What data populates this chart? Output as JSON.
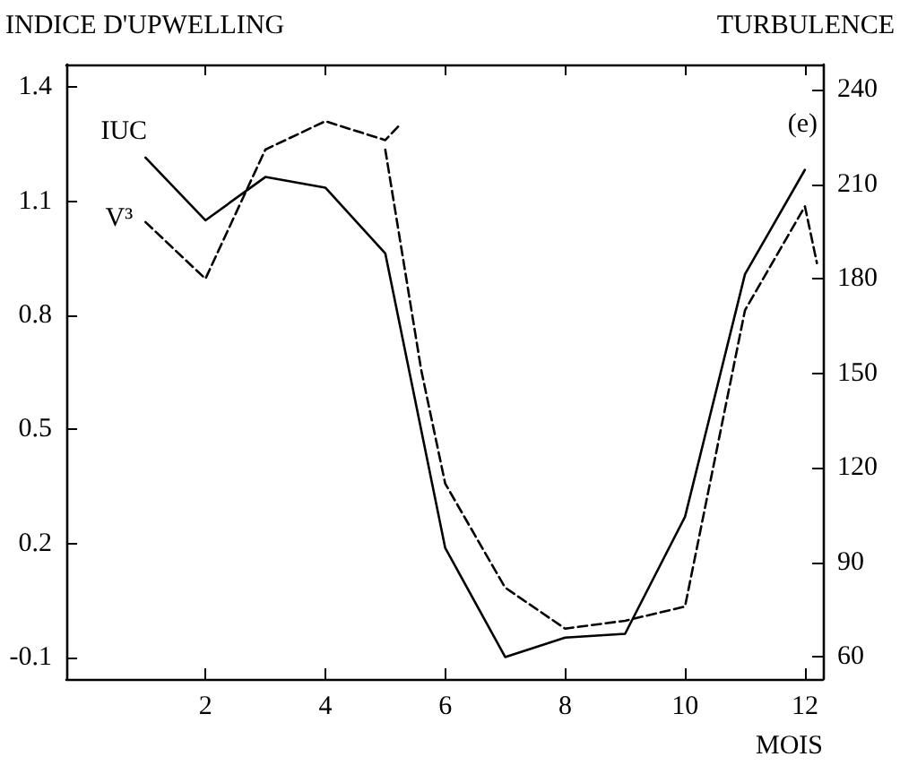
{
  "chart_data": {
    "type": "line",
    "ylabel": "INDICE D'UPWELLING",
    "y2label": "TURBULENCE",
    "xlabel": "MOIS",
    "annotations": [
      "(e)"
    ],
    "xlim": [
      -0.32,
      12.3
    ],
    "xticks": [
      2,
      4,
      6,
      8,
      10,
      12
    ],
    "ylim": [
      -0.157,
      1.46
    ],
    "yticks": [
      -0.1,
      0.2,
      0.5,
      0.8,
      1.1,
      1.4
    ],
    "y2lim": [
      53,
      248
    ],
    "y2ticks": [
      60,
      90,
      120,
      150,
      180,
      210,
      240
    ],
    "grid": false,
    "legend": false,
    "marker": "none",
    "series": [
      {
        "name": "IUC",
        "color": "#000000",
        "line_style": "solid",
        "x": [
          1,
          2,
          3,
          4,
          5,
          6,
          7,
          8,
          9,
          10,
          11,
          12
        ],
        "values": [
          1.215,
          1.05,
          1.164,
          1.136,
          0.963,
          0.188,
          -0.099,
          -0.048,
          -0.038,
          0.27,
          0.908,
          1.183
        ]
      },
      {
        "name": "V³",
        "color": "#000000",
        "line_style": "dashed",
        "axis": "y2",
        "x": [
          1,
          2,
          3,
          4,
          5,
          5.25,
          5.1,
          5.0,
          5.6,
          6,
          7,
          8,
          9,
          10,
          11,
          12,
          12.2
        ],
        "values": [
          198,
          180,
          221,
          230,
          224,
          229,
          null,
          221,
          151,
          115,
          82,
          69,
          71.5,
          76,
          170,
          203,
          185
        ]
      }
    ]
  }
}
